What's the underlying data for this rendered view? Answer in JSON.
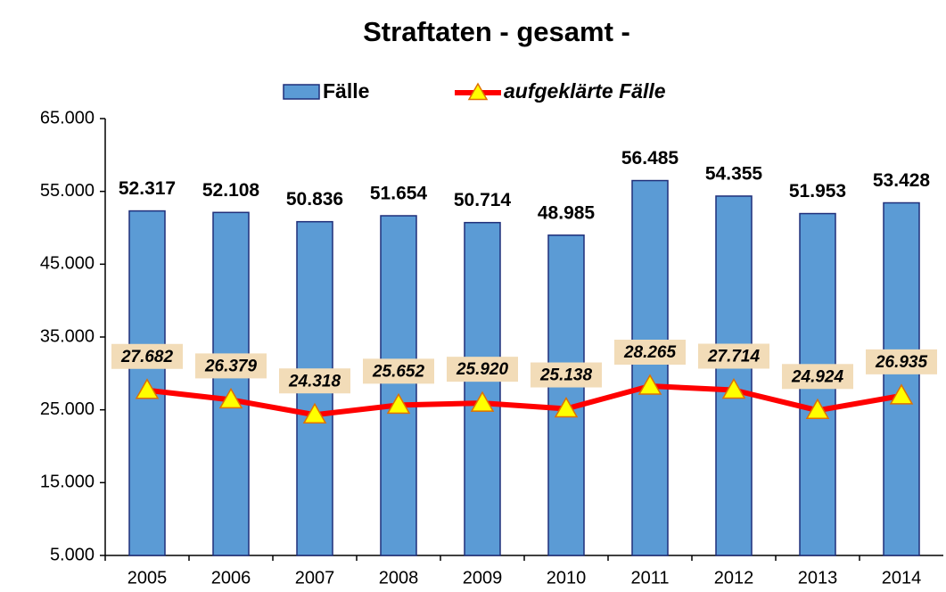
{
  "chart_data": {
    "type": "bar",
    "title": "Straftaten - gesamt -",
    "categories": [
      "2005",
      "2006",
      "2007",
      "2008",
      "2009",
      "2010",
      "2011",
      "2012",
      "2013",
      "2014"
    ],
    "series": [
      {
        "name": "Fälle",
        "type": "bar",
        "color": "#5b9bd5",
        "values": [
          52317,
          52108,
          50836,
          51654,
          50714,
          48985,
          56485,
          54355,
          51953,
          53428
        ],
        "value_labels": [
          "52.317",
          "52.108",
          "50.836",
          "51.654",
          "50.714",
          "48.985",
          "56.485",
          "54.355",
          "51.953",
          "53.428"
        ]
      },
      {
        "name": "aufgeklärte Fälle",
        "type": "line",
        "color": "#ff0000",
        "values": [
          27682,
          26379,
          24318,
          25652,
          25920,
          25138,
          28265,
          27714,
          24924,
          26935
        ],
        "value_labels": [
          "27.682",
          "26.379",
          "24.318",
          "25.652",
          "25.920",
          "25.138",
          "28.265",
          "27.714",
          "24.924",
          "26.935"
        ]
      }
    ],
    "ylim": [
      5000,
      65000
    ],
    "yticks": [
      {
        "value": 5000,
        "label": "5.000"
      },
      {
        "value": 15000,
        "label": "15.000"
      },
      {
        "value": 25000,
        "label": "25.000"
      },
      {
        "value": 35000,
        "label": "35.000"
      },
      {
        "value": 45000,
        "label": "45.000"
      },
      {
        "value": 55000,
        "label": "55.000"
      },
      {
        "value": 65000,
        "label": "65.000"
      }
    ],
    "grid": false,
    "legend": "top"
  }
}
